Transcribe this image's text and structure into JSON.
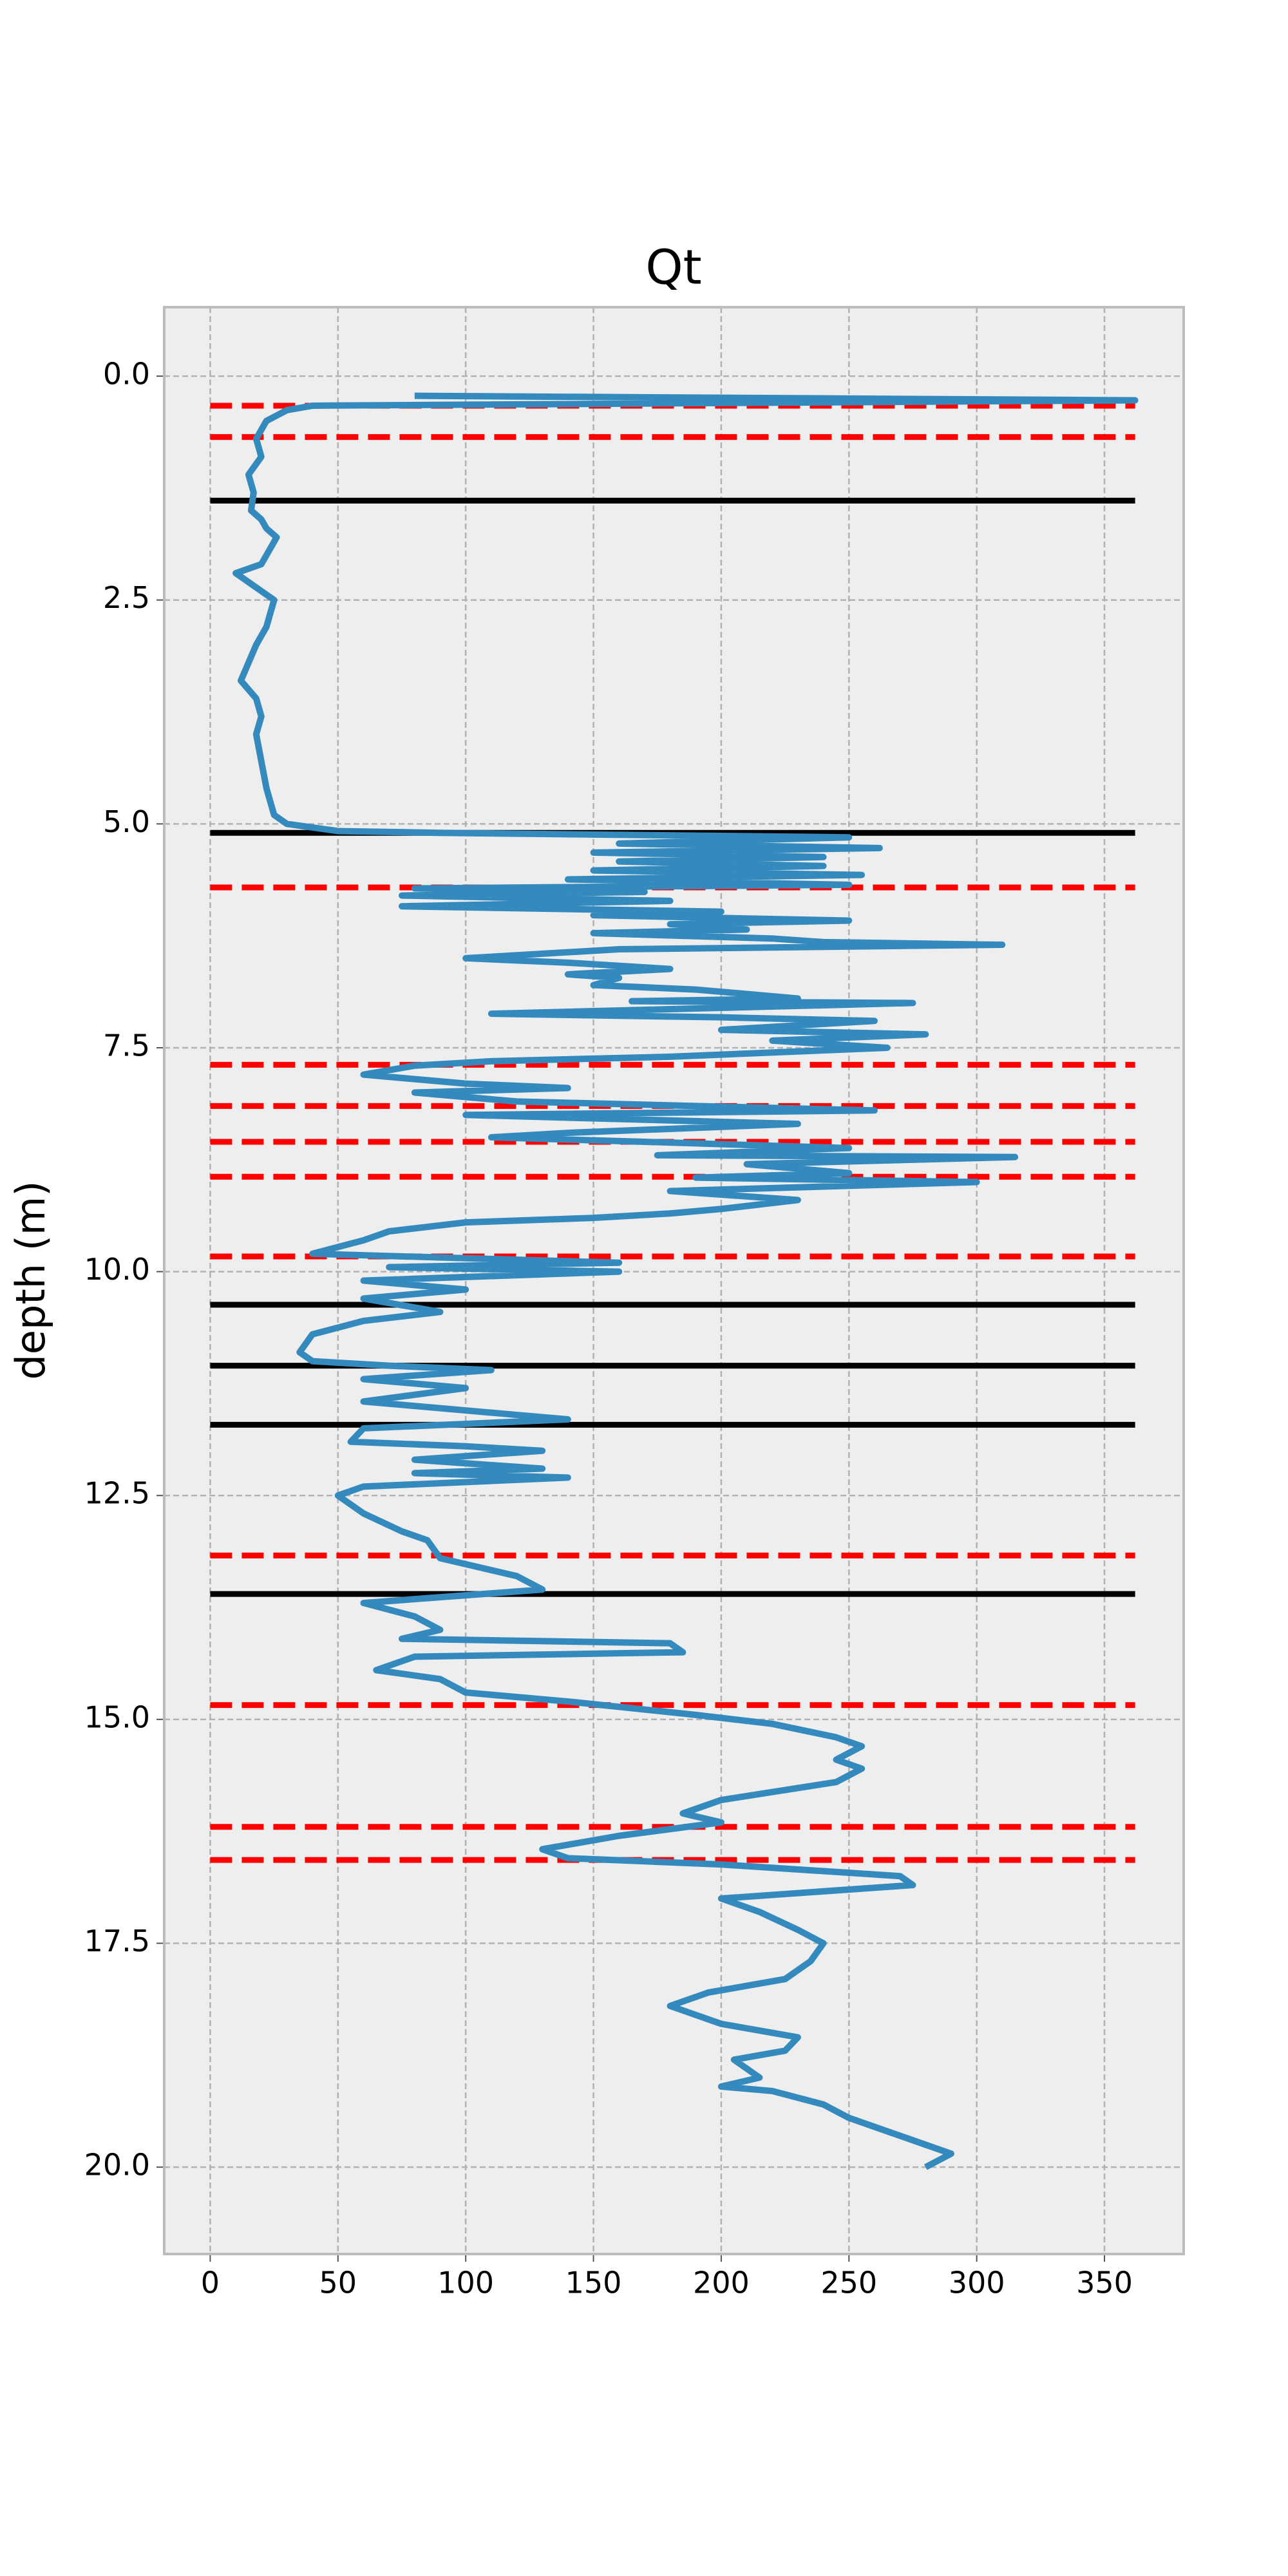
{
  "chart_data": {
    "type": "line",
    "title": "Qt",
    "ylabel": "depth (m)",
    "xlim": [
      -18,
      381
    ],
    "ylim": [
      -0.77,
      20.97
    ],
    "y_inverted": true,
    "grid": true,
    "xticks": [
      0,
      50,
      100,
      150,
      200,
      250,
      300,
      350
    ],
    "yticks": [
      {
        "value": 0,
        "label": "0.0"
      },
      2.5,
      {
        "value": 5,
        "label": "5.0"
      },
      7.5,
      {
        "value": 10,
        "label": "10.0"
      },
      12.5,
      {
        "value": 15,
        "label": "15.0"
      },
      17.5,
      {
        "value": 20,
        "label": "20.0"
      }
    ],
    "reference_xrange": [
      0,
      362
    ],
    "reference_lines": [
      {
        "color": "#ff0000",
        "style": "dashed",
        "y": [
          0.33,
          0.68,
          5.71,
          7.69,
          8.15,
          8.55,
          8.94,
          9.83,
          13.17,
          14.84,
          16.2,
          16.57
        ]
      },
      {
        "color": "#000000",
        "style": "solid",
        "y": [
          1.39,
          5.1,
          10.37,
          11.05,
          11.71,
          13.6
        ]
      }
    ],
    "y": [
      0.22,
      0.27,
      0.33,
      0.38,
      0.5,
      0.7,
      0.9,
      1.1,
      1.3,
      1.5,
      1.6,
      1.7,
      1.8,
      2.0,
      2.1,
      2.2,
      2.3,
      2.4,
      2.5,
      2.8,
      3.0,
      3.2,
      3.4,
      3.6,
      3.8,
      4.0,
      4.3,
      4.6,
      4.9,
      5.0,
      5.08,
      5.1,
      5.15,
      5.22,
      5.27,
      5.32,
      5.37,
      5.42,
      5.47,
      5.52,
      5.57,
      5.62,
      5.68,
      5.72,
      5.76,
      5.8,
      5.86,
      5.92,
      5.98,
      6.02,
      6.08,
      6.12,
      6.18,
      6.22,
      6.28,
      6.32,
      6.35,
      6.4,
      6.5,
      6.55,
      6.62,
      6.68,
      6.72,
      6.8,
      6.85,
      6.95,
      6.98,
      7.0,
      7.12,
      7.16,
      7.2,
      7.3,
      7.35,
      7.42,
      7.5,
      7.6,
      7.65,
      7.7,
      7.8,
      7.85,
      7.9,
      7.95,
      8.0,
      8.1,
      8.2,
      8.25,
      8.35,
      8.45,
      8.5,
      8.55,
      8.62,
      8.7,
      8.72,
      8.8,
      8.9,
      8.95,
      9.0,
      9.1,
      9.2,
      9.3,
      9.35,
      9.4,
      9.45,
      9.55,
      9.65,
      9.8,
      9.85,
      9.9,
      9.95,
      10.0,
      10.1,
      10.2,
      10.3,
      10.45,
      10.55,
      10.7,
      10.9,
      11.0,
      11.05,
      11.1,
      11.2,
      11.3,
      11.45,
      11.6,
      11.65,
      11.75,
      11.9,
      11.95,
      12.0,
      12.1,
      12.2,
      12.25,
      12.3,
      12.4,
      12.5,
      12.7,
      12.9,
      13.0,
      13.2,
      13.4,
      13.55,
      13.7,
      13.85,
      14.0,
      14.1,
      14.15,
      14.25,
      14.3,
      14.45,
      14.55,
      14.7,
      14.8,
      14.95,
      15.05,
      15.2,
      15.3,
      15.45,
      15.55,
      15.7,
      15.9,
      16.05,
      16.15,
      16.3,
      16.45,
      16.55,
      16.62,
      16.75,
      16.85,
      17.0,
      17.15,
      17.35,
      17.5,
      17.7,
      17.9,
      18.05,
      18.2,
      18.4,
      18.55,
      18.7,
      18.8,
      19.0,
      19.1,
      19.15,
      19.3,
      19.45,
      19.6,
      19.7,
      19.85,
      20.0
    ],
    "series": [
      {
        "color": "#348abd",
        "values": [
          80,
          362,
          40,
          30,
          22,
          18,
          20,
          15,
          17,
          16,
          20,
          22,
          26,
          22,
          20,
          10,
          15,
          20,
          25,
          22,
          18,
          15,
          12,
          18,
          20,
          18,
          20,
          22,
          25,
          30,
          50,
          90,
          250,
          160,
          262,
          150,
          240,
          160,
          240,
          150,
          255,
          140,
          250,
          80,
          170,
          75,
          180,
          75,
          200,
          150,
          250,
          180,
          210,
          150,
          220,
          240,
          310,
          160,
          100,
          140,
          180,
          140,
          160,
          150,
          190,
          230,
          165,
          275,
          110,
          200,
          260,
          200,
          280,
          220,
          265,
          180,
          110,
          80,
          60,
          80,
          100,
          140,
          80,
          120,
          260,
          100,
          230,
          140,
          110,
          170,
          250,
          175,
          315,
          210,
          250,
          190,
          300,
          180,
          230,
          200,
          180,
          150,
          100,
          70,
          60,
          40,
          100,
          160,
          70,
          160,
          60,
          100,
          60,
          90,
          60,
          40,
          35,
          40,
          70,
          110,
          60,
          100,
          60,
          120,
          140,
          60,
          55,
          100,
          130,
          80,
          130,
          80,
          140,
          60,
          50,
          60,
          75,
          85,
          90,
          120,
          130,
          60,
          80,
          90,
          75,
          180,
          185,
          80,
          65,
          90,
          100,
          140,
          190,
          220,
          245,
          255,
          245,
          255,
          245,
          200,
          185,
          200,
          160,
          130,
          140,
          200,
          270,
          275,
          200,
          215,
          230,
          240,
          235,
          225,
          195,
          180,
          200,
          230,
          225,
          205,
          215,
          200,
          220,
          240,
          250,
          265,
          275,
          290,
          280
        ]
      }
    ]
  }
}
